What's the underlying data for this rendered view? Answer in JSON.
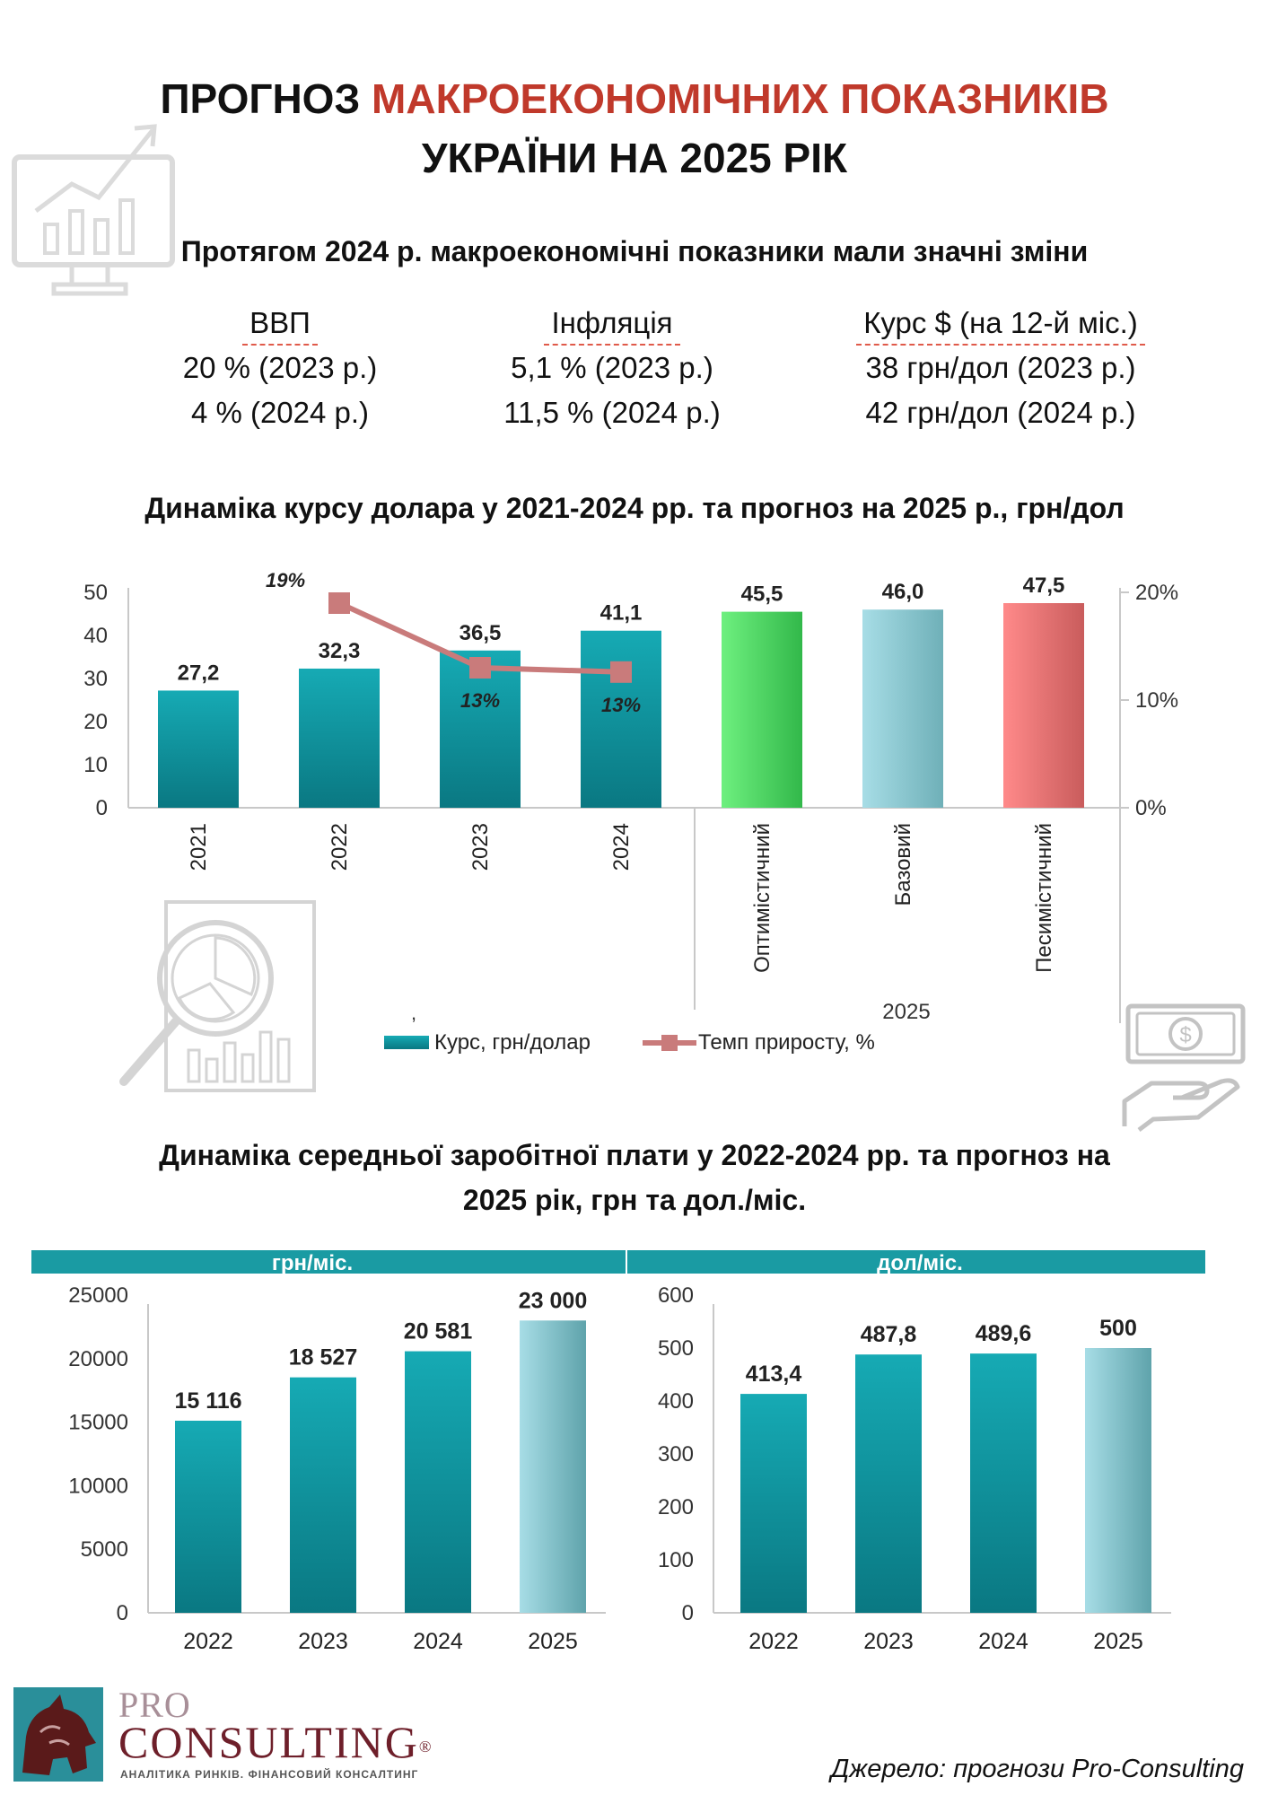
{
  "header": {
    "title_part1": "ПРОГНОЗ",
    "title_accent": "МАКРОЕКОНОМІЧНИХ ПОКАЗНИКІВ",
    "title_line2": "УКРАЇНИ НА 2025 РІК"
  },
  "summary": {
    "heading": "Протягом 2024 р. макроекономічні показники мали значні зміни",
    "indicators": [
      {
        "label": "ВВП",
        "v2023": "20 % (2023 р.)",
        "v2024": "4 % (2024 р.)"
      },
      {
        "label": "Інфляція",
        "v2023": "5,1 % (2023 р.)",
        "v2024": "11,5 % (2024 р.)"
      },
      {
        "label": "Курс $ (на 12-й міс.)",
        "v2023": "38 грн/дол (2023 р.)",
        "v2024": "42 грн/дол (2024 р.)"
      }
    ]
  },
  "colors": {
    "accent": "#c0392b",
    "teal": "#0f9aa6",
    "teal_dark": "#0a7f88",
    "optimistic": "#4fdc6b",
    "base": "#8fd0da",
    "pessimistic": "#ef7a7a",
    "line": "#c97b7b",
    "header_band": "#1a9ba3"
  },
  "chart_data": [
    {
      "type": "bar",
      "title": "Динаміка курсу долара у 2021-2024 рр. та прогноз на 2025 р., грн/дол",
      "categories": [
        "2021",
        "2022",
        "2023",
        "2024",
        "Оптимістичний",
        "Базовий",
        "Песимістичний"
      ],
      "group_label": "2025",
      "series": [
        {
          "name": "Курс, грн/долар",
          "values": [
            27.2,
            32.3,
            36.5,
            41.1,
            45.5,
            46.0,
            47.5
          ],
          "labels": [
            "27,2",
            "32,3",
            "36,5",
            "41,1",
            "45,5",
            "46,0",
            "47,5"
          ]
        },
        {
          "name": "Темп приросту, %",
          "type": "line",
          "axis": "right",
          "values": [
            null,
            19,
            13,
            12.6,
            null,
            null,
            null
          ],
          "labels": [
            "",
            "19%",
            "13%",
            "13%",
            "",
            "",
            ""
          ]
        }
      ],
      "ylim": [
        0,
        50
      ],
      "yticks": [
        "0",
        "10",
        "20",
        "30",
        "40",
        "50"
      ],
      "y2lim": [
        0,
        20
      ],
      "y2ticks": [
        "0%",
        "10%",
        "20%"
      ],
      "legend_marker": ",",
      "legend": "bottom"
    },
    {
      "type": "bar",
      "title": "Динаміка середньої заробітної плати у 2022-2024 рр. та прогноз на 2025 рік, грн та дол./міс.",
      "panel": "грн/міс.",
      "categories": [
        "2022",
        "2023",
        "2024",
        "2025"
      ],
      "values": [
        15116,
        18527,
        20581,
        23000
      ],
      "labels": [
        "15 116",
        "18 527",
        "20 581",
        "23 000"
      ],
      "ylim": [
        0,
        25000
      ],
      "yticks": [
        "0",
        "5000",
        "10000",
        "15000",
        "20000",
        "25000"
      ]
    },
    {
      "type": "bar",
      "panel": "дол/міс.",
      "categories": [
        "2022",
        "2023",
        "2024",
        "2025"
      ],
      "values": [
        413.4,
        487.8,
        489.6,
        500
      ],
      "labels": [
        "413,4",
        "487,8",
        "489,6",
        "500"
      ],
      "ylim": [
        0,
        600
      ],
      "yticks": [
        "0",
        "100",
        "200",
        "300",
        "400",
        "500",
        "600"
      ]
    }
  ],
  "salary_title_line1": "Динаміка середньої заробітної плати у 2022-2024 рр. та прогноз на",
  "salary_title_line2": "2025 рік, грн та дол./міс.",
  "footer": {
    "logo_pro": "PRO",
    "logo_consulting": "CONSULTING",
    "logo_reg": "®",
    "logo_tagline": "АНАЛІТИКА РИНКІВ. ФІНАНСОВИЙ КОНСАЛТИНГ",
    "source": "Джерело: прогнози Pro-Consulting"
  }
}
